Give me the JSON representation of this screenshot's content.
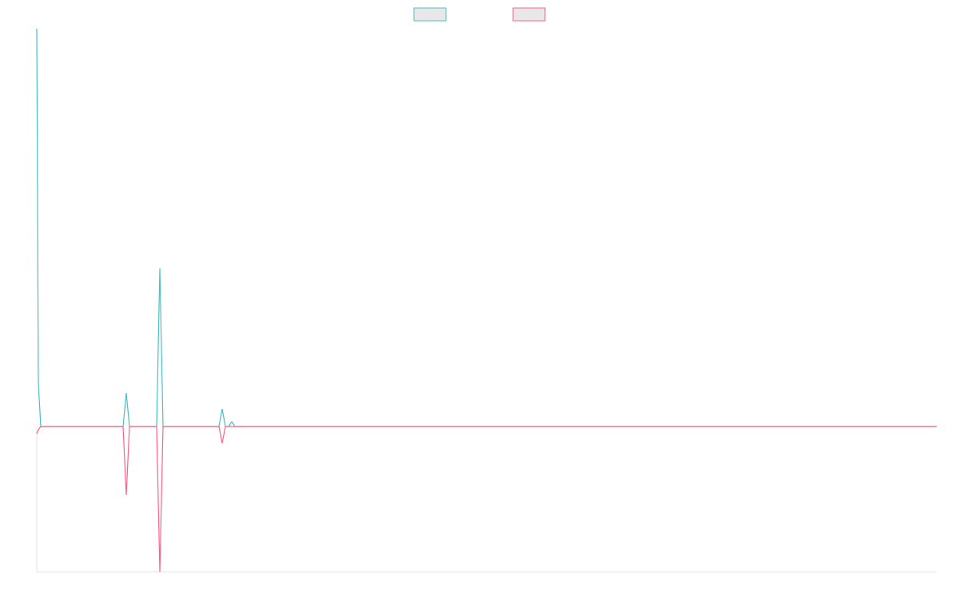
{
  "chart_data": {
    "type": "line",
    "x": [
      0,
      2,
      5,
      14,
      108,
      112,
      116,
      150,
      154,
      158,
      228,
      232,
      236,
      240,
      244,
      248,
      1126
    ],
    "series": [
      {
        "color": "#4bc0c0",
        "values": [
          498,
          54,
          0,
          0,
          0,
          42,
          0,
          0,
          198,
          0,
          0,
          22,
          0,
          0,
          6,
          0,
          0
        ]
      },
      {
        "color": "#ff6384",
        "values": [
          -9,
          -4,
          0,
          0,
          0,
          -86,
          0,
          0,
          -182,
          0,
          0,
          -21,
          0,
          0,
          0,
          0,
          0
        ]
      }
    ],
    "xlim": [
      0,
      1126
    ],
    "ylim": [
      -182,
      498
    ],
    "legend": "top"
  }
}
